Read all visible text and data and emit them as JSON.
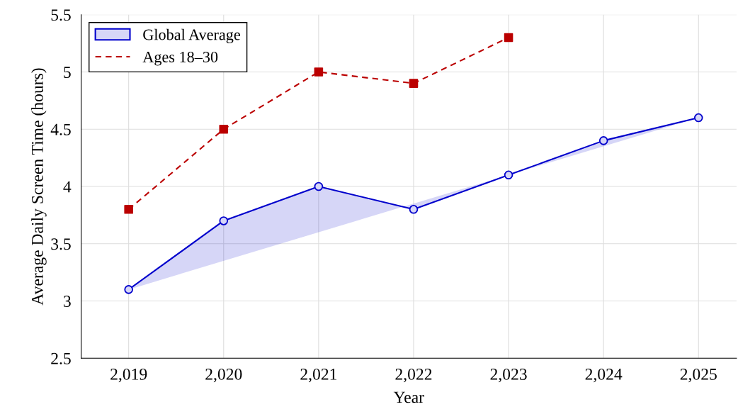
{
  "chart_data": {
    "type": "line",
    "xlabel": "Year",
    "ylabel": "Average Daily Screen Time (hours)",
    "x": [
      2019,
      2020,
      2021,
      2022,
      2023,
      2024,
      2025
    ],
    "series": [
      {
        "name": "Global Average",
        "type": "area",
        "color": "#0000cc",
        "marker": "circle",
        "line_style": "solid",
        "values": [
          3.1,
          3.7,
          4.0,
          3.8,
          4.1,
          4.4,
          4.6
        ]
      },
      {
        "name": "Ages 18–30",
        "color": "#bb0000",
        "marker": "square",
        "line_style": "dashed",
        "values": [
          3.8,
          4.5,
          5.0,
          4.9,
          5.3,
          null,
          null
        ]
      }
    ],
    "xlim": [
      2018.5,
      2025.4
    ],
    "ylim": [
      2.5,
      5.5
    ],
    "xticks": [
      {
        "value": 2019,
        "label": "2,019"
      },
      {
        "value": 2020,
        "label": "2,020"
      },
      {
        "value": 2021,
        "label": "2,021"
      },
      {
        "value": 2022,
        "label": "2,022"
      },
      {
        "value": 2023,
        "label": "2,023"
      },
      {
        "value": 2024,
        "label": "2,024"
      },
      {
        "value": 2025,
        "label": "2,025"
      }
    ],
    "yticks": [
      2.5,
      3,
      3.5,
      4,
      4.5,
      5,
      5.5
    ],
    "grid": true,
    "legend": "top left"
  }
}
